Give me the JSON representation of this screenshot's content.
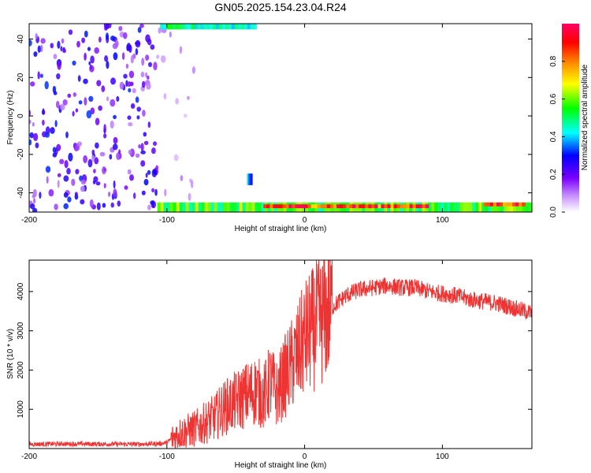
{
  "figure": {
    "title": "GN05.2025.154.23.04.R24"
  },
  "chart_data": [
    {
      "type": "heatmap",
      "title": "GN05.2025.154.23.04.R24",
      "xlabel": "Height of straight line (km)",
      "ylabel": "Frequency (Hz)",
      "xlim": [
        -200,
        165
      ],
      "ylim": [
        -50,
        48
      ],
      "x_ticks": [
        -200,
        -100,
        0,
        100
      ],
      "y_ticks": [
        -40,
        -20,
        0,
        20,
        40
      ],
      "grid": false,
      "colorbar": {
        "label": "Normalized spectral amplitude",
        "range": [
          0,
          1
        ],
        "ticks": [
          0.0,
          0.2,
          0.4,
          0.6,
          0.8
        ],
        "colormap": [
          "#ffffff",
          "#ff00ff",
          "#0000ff",
          "#00ffff",
          "#00ff00",
          "#ffff00",
          "#ff0000",
          "#ff0066"
        ]
      },
      "regions": [
        {
          "desc": "scattered energy",
          "x": [
            -200,
            -107
          ],
          "y": [
            -50,
            48
          ],
          "amplitude": 0.3
        },
        {
          "desc": "sparse scatter",
          "x": [
            -107,
            -80
          ],
          "y": [
            -50,
            48
          ],
          "amplitude": 0.1
        },
        {
          "desc": "top edge band",
          "x": [
            -105,
            -35
          ],
          "y": [
            45,
            48
          ],
          "amplitude": 0.5
        },
        {
          "desc": "bottom edge band",
          "x": [
            -107,
            165
          ],
          "y": [
            -50,
            -45
          ],
          "amplitude": 0.6
        },
        {
          "desc": "bottom peak",
          "x": [
            -30,
            90
          ],
          "y": [
            -48,
            -46
          ],
          "amplitude": 0.95
        },
        {
          "desc": "bottom peak",
          "x": [
            130,
            160
          ],
          "y": [
            -47,
            -45
          ],
          "amplitude": 0.95
        },
        {
          "desc": "isolated patch",
          "x": [
            -42,
            -38
          ],
          "y": [
            -36,
            -30
          ],
          "amplitude": 0.4
        }
      ]
    },
    {
      "type": "line",
      "xlabel": "Height of straight line (km)",
      "ylabel": "SNR (10 * v/v)",
      "xlim": [
        -200,
        165
      ],
      "ylim": [
        0,
        4800
      ],
      "x_ticks": [
        -200,
        -100,
        0,
        100
      ],
      "y_ticks": [
        1000,
        2000,
        3000,
        4000
      ],
      "grid": false,
      "color": "#ee3333",
      "series": [
        {
          "x": [
            -200,
            -175,
            -150,
            -125,
            -105,
            -100,
            -95,
            -90,
            -85,
            -80,
            -75,
            -70,
            -65,
            -60,
            -55,
            -50,
            -45,
            -40,
            -35,
            -30,
            -25,
            -20,
            -15,
            -10,
            -5,
            0,
            5,
            10,
            15,
            20,
            25,
            30,
            40,
            50,
            60,
            70,
            80,
            90,
            100,
            110,
            120,
            130,
            140,
            150,
            160,
            165
          ],
          "values": [
            110,
            120,
            115,
            110,
            125,
            150,
            300,
            400,
            450,
            500,
            600,
            700,
            800,
            1000,
            1100,
            1200,
            1300,
            1400,
            1500,
            1300,
            1700,
            1400,
            1800,
            2100,
            2400,
            2800,
            3000,
            3200,
            3400,
            3600,
            3750,
            3900,
            4050,
            4100,
            4150,
            4100,
            4100,
            4000,
            3950,
            3900,
            3800,
            3750,
            3700,
            3600,
            3500,
            3450
          ]
        }
      ]
    }
  ]
}
